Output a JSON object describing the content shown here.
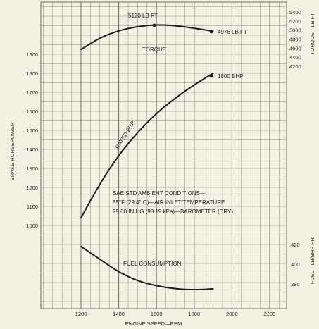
{
  "chart_data": {
    "type": "line",
    "x": {
      "label": "ENGINE SPEED—RPM",
      "ticks": [
        1200,
        1400,
        1600,
        1800,
        2000,
        2200
      ],
      "range": [
        1000,
        2300
      ]
    },
    "left_axis": {
      "label": "BRAKE HORSEPOWER",
      "ticks": [
        1000,
        1100,
        1200,
        1300,
        1400,
        1500,
        1600,
        1700,
        1800,
        1900
      ]
    },
    "right_axis_torque": {
      "label": "TORQUE—LB FT",
      "ticks": [
        4200,
        4400,
        4600,
        4800,
        5000,
        5200,
        5400
      ]
    },
    "right_axis_fuel": {
      "label": "FUEL—LB/BHP HR",
      "ticks": [
        ".380",
        ".400",
        ".420"
      ],
      "tick_values": [
        0.38,
        0.4,
        0.42
      ]
    },
    "series": [
      {
        "name": "TORQUE",
        "axis": "torque",
        "x": [
          1200,
          1300,
          1400,
          1500,
          1600,
          1700,
          1800,
          1900
        ],
        "y": [
          4570,
          4830,
          4990,
          5080,
          5120,
          5100,
          5040,
          4976
        ]
      },
      {
        "name": "RATED BHP",
        "axis": "bhp",
        "x": [
          1200,
          1300,
          1400,
          1500,
          1600,
          1700,
          1800,
          1900
        ],
        "y": [
          1040,
          1220,
          1370,
          1490,
          1590,
          1670,
          1740,
          1800
        ]
      },
      {
        "name": "FUEL CONSUMPTION",
        "axis": "fuel",
        "x": [
          1200,
          1300,
          1400,
          1500,
          1600,
          1700,
          1800,
          1900
        ],
        "y": [
          0.418,
          0.405,
          0.392,
          0.383,
          0.378,
          0.375,
          0.374,
          0.375
        ]
      }
    ],
    "annotations": {
      "peak_torque": "5120 LB FT",
      "end_torque": "4976 LB FT",
      "torque_label": "TORQUE",
      "bhp_end": "1800 BHP",
      "rated_label": "RATED BHP",
      "fuel_label": "FUEL CONSUMPTION",
      "conditions": [
        "SAE STD AMBIENT CONDITIONS—",
        "85°F (29.4° C)—AIR INLET TEMPERATURE",
        "29.00 IN  HG (98.19 kPa)—BAROMETER (DRY)"
      ]
    },
    "grid": true,
    "colors": {
      "background": "#f4f1e2",
      "grid": "#8e8a80",
      "curve": "#1c1c1c"
    }
  }
}
